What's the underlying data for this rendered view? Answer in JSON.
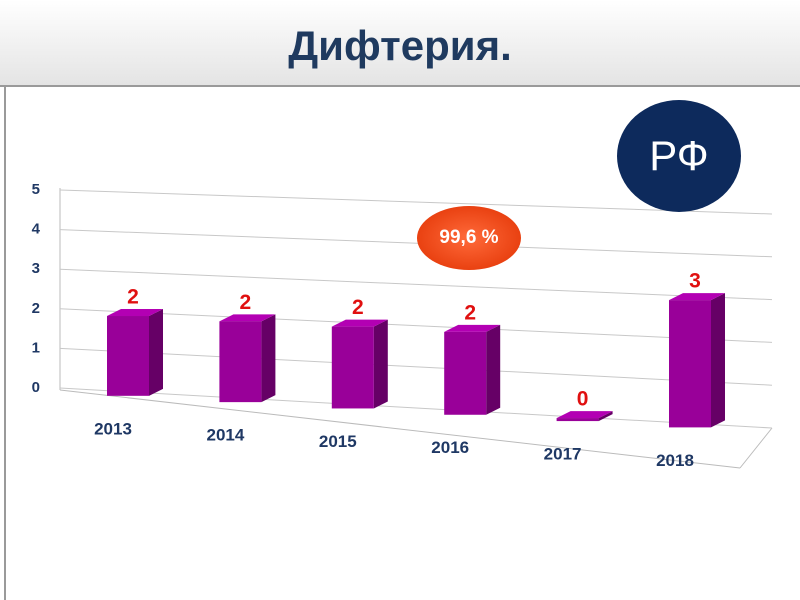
{
  "chart_data": {
    "type": "bar",
    "title": "Дифтерия.",
    "categories": [
      "2013",
      "2014",
      "2015",
      "2016",
      "2017",
      "2018"
    ],
    "values": [
      2,
      2,
      2,
      2,
      0,
      3
    ],
    "color": "#990099",
    "ylim": [
      0,
      5
    ],
    "yticks": [
      0,
      1,
      2,
      3,
      4,
      5
    ],
    "grid": true,
    "badge": "РФ",
    "coverage_label": "99,6 %"
  }
}
